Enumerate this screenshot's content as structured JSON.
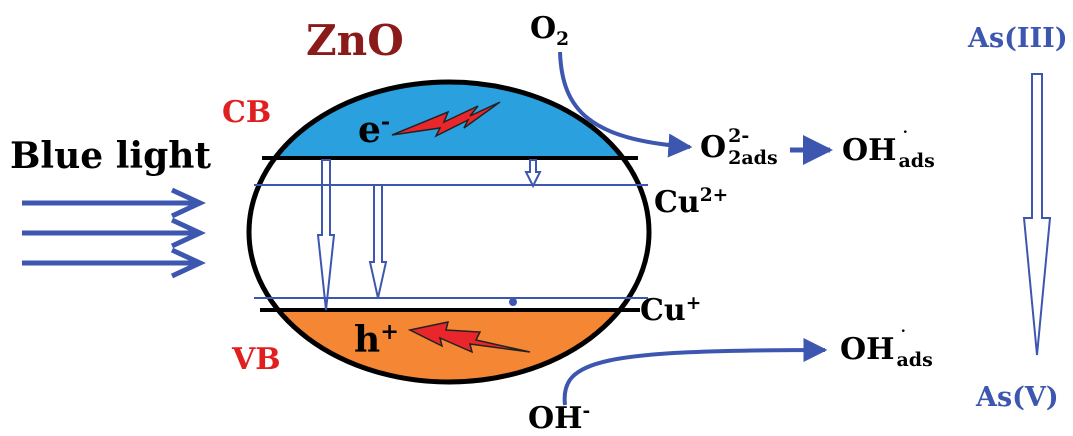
{
  "material": "ZnO",
  "light_source": "Blue light",
  "bands": {
    "conduction": "CB",
    "valence": "VB"
  },
  "carriers": {
    "electron": "e",
    "electron_sign": "-",
    "hole": "h",
    "hole_sign": "+"
  },
  "species": {
    "oxygen": {
      "base": "O",
      "sub": "2"
    },
    "superoxide": {
      "base": "O",
      "sup": "2-",
      "sub": "2ads"
    },
    "hydroxyl_radical_top": {
      "base": "OH",
      "dot": "˙",
      "sub": "ads"
    },
    "hydroxyl_radical_bottom": {
      "base": "OH",
      "dot": "˙",
      "sub": "ads"
    },
    "hydroxide": {
      "base": "OH",
      "sup": "-"
    },
    "copper_2": {
      "base": "Cu",
      "sup": "2+"
    },
    "copper_1": {
      "base": "Cu",
      "sup": "+"
    }
  },
  "arsenic": {
    "from": "As(III)",
    "to": "As(V)"
  },
  "colors": {
    "cb_fill": "#2aa0de",
    "vb_fill": "#f58634",
    "arrow_blue": "#3d57b0",
    "label_red": "#e02020",
    "zno_maroon": "#8b1a1a",
    "lightning_red": "#e8262b"
  }
}
